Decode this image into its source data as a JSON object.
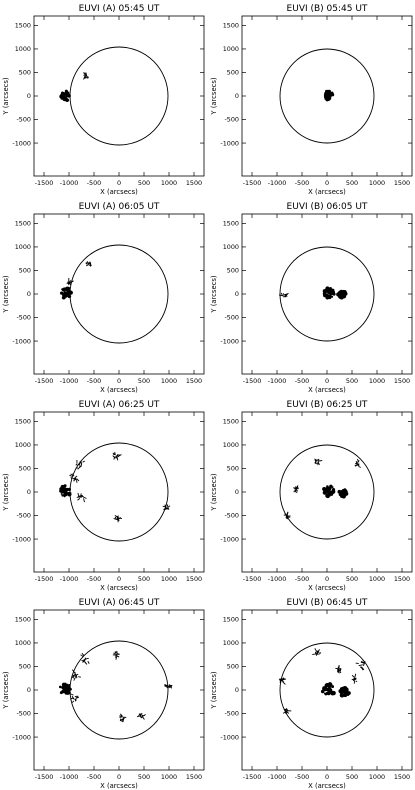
{
  "figure": {
    "chart_data": [
      {
        "type": "scatter",
        "title": "EUVI (A) 05:45 UT",
        "xlabel": "X (arcsecs)",
        "ylabel": "Y (arcsecs)",
        "xlim": [
          -1700,
          1700
        ],
        "ylim": [
          -1700,
          1700
        ],
        "disk_radius": 980,
        "xticks": [
          "-1500",
          "-1000",
          "-500",
          "0",
          "500",
          "1000",
          "1500"
        ],
        "yticks": [
          "-1000",
          "-500",
          "0",
          "500",
          "1000",
          "1500"
        ],
        "regions": [
          {
            "x": -1080,
            "y": 0,
            "r": 100,
            "dense": true
          },
          {
            "x": -660,
            "y": 430,
            "r": 25,
            "dense": false
          }
        ]
      },
      {
        "type": "scatter",
        "title": "EUVI (B) 05:45 UT",
        "xlabel": "X (arcsecs)",
        "ylabel": "Y (arcsecs)",
        "xlim": [
          -1700,
          1700
        ],
        "ylim": [
          -1700,
          1700
        ],
        "disk_radius": 940,
        "xticks": [
          "-1500",
          "-1000",
          "-500",
          "0",
          "500",
          "1000",
          "1500"
        ],
        "yticks": [
          "-1000",
          "-500",
          "0",
          "500",
          "1000",
          "1500"
        ],
        "regions": [
          {
            "x": 30,
            "y": 20,
            "r": 95,
            "dense": true
          }
        ]
      },
      {
        "type": "scatter",
        "title": "EUVI (A) 06:05 UT",
        "xlabel": "X (arcsecs)",
        "ylabel": "Y (arcsecs)",
        "xlim": [
          -1700,
          1700
        ],
        "ylim": [
          -1700,
          1700
        ],
        "disk_radius": 980,
        "xticks": [
          "-1500",
          "-1000",
          "-500",
          "0",
          "500",
          "1000",
          "1500"
        ],
        "yticks": [
          "-1000",
          "-500",
          "0",
          "500",
          "1000",
          "1500"
        ],
        "regions": [
          {
            "x": -1060,
            "y": 20,
            "r": 110,
            "dense": true
          },
          {
            "x": -600,
            "y": 650,
            "r": 45,
            "dense": false
          },
          {
            "x": -980,
            "y": 250,
            "r": 30,
            "dense": false
          }
        ]
      },
      {
        "type": "scatter",
        "title": "EUVI (B) 06:05 UT",
        "xlabel": "X (arcsecs)",
        "ylabel": "Y (arcsecs)",
        "xlim": [
          -1700,
          1700
        ],
        "ylim": [
          -1700,
          1700
        ],
        "disk_radius": 940,
        "xticks": [
          "-1500",
          "-1000",
          "-500",
          "0",
          "500",
          "1000",
          "1500"
        ],
        "yticks": [
          "-1000",
          "-500",
          "0",
          "500",
          "1000",
          "1500"
        ],
        "regions": [
          {
            "x": 40,
            "y": 20,
            "r": 105,
            "dense": true
          },
          {
            "x": 300,
            "y": 0,
            "r": 75,
            "dense": true
          },
          {
            "x": -850,
            "y": -50,
            "r": 40,
            "dense": false
          }
        ]
      },
      {
        "type": "scatter",
        "title": "EUVI (A) 06:25 UT",
        "xlabel": "X (arcsecs)",
        "ylabel": "Y (arcsecs)",
        "xlim": [
          -1700,
          1700
        ],
        "ylim": [
          -1700,
          1700
        ],
        "disk_radius": 980,
        "xticks": [
          "-1500",
          "-1000",
          "-500",
          "0",
          "500",
          "1000",
          "1500"
        ],
        "yticks": [
          "-1000",
          "-500",
          "0",
          "500",
          "1000",
          "1500"
        ],
        "regions": [
          {
            "x": -1070,
            "y": 20,
            "r": 115,
            "dense": true
          },
          {
            "x": -800,
            "y": 600,
            "r": 90,
            "dense": false
          },
          {
            "x": -900,
            "y": 300,
            "r": 60,
            "dense": false
          },
          {
            "x": -760,
            "y": -120,
            "r": 60,
            "dense": false
          },
          {
            "x": -50,
            "y": 760,
            "r": 50,
            "dense": false
          },
          {
            "x": -30,
            "y": -560,
            "r": 35,
            "dense": false
          },
          {
            "x": 950,
            "y": -330,
            "r": 30,
            "dense": false
          }
        ]
      },
      {
        "type": "scatter",
        "title": "EUVI (B) 06:25 UT",
        "xlabel": "X (arcsecs)",
        "ylabel": "Y (arcsecs)",
        "xlim": [
          -1700,
          1700
        ],
        "ylim": [
          -1700,
          1700
        ],
        "disk_radius": 940,
        "xticks": [
          "-1500",
          "-1000",
          "-500",
          "0",
          "500",
          "1000",
          "1500"
        ],
        "yticks": [
          "-1000",
          "-500",
          "0",
          "500",
          "1000",
          "1500"
        ],
        "regions": [
          {
            "x": 40,
            "y": 20,
            "r": 110,
            "dense": true
          },
          {
            "x": 320,
            "y": -20,
            "r": 80,
            "dense": true
          },
          {
            "x": -200,
            "y": 650,
            "r": 45,
            "dense": false
          },
          {
            "x": 600,
            "y": 580,
            "r": 60,
            "dense": false
          },
          {
            "x": -800,
            "y": -520,
            "r": 35,
            "dense": false
          },
          {
            "x": -600,
            "y": 60,
            "r": 30,
            "dense": false
          }
        ]
      },
      {
        "type": "scatter",
        "title": "EUVI (A) 06:45 UT",
        "xlabel": "X (arcsecs)",
        "ylabel": "Y (arcsecs)",
        "xlim": [
          -1700,
          1700
        ],
        "ylim": [
          -1700,
          1700
        ],
        "disk_radius": 980,
        "xticks": [
          "-1500",
          "-1000",
          "-500",
          "0",
          "500",
          "1000",
          "1500"
        ],
        "yticks": [
          "-1000",
          "-500",
          "0",
          "500",
          "1000",
          "1500"
        ],
        "regions": [
          {
            "x": -1070,
            "y": 20,
            "r": 115,
            "dense": true
          },
          {
            "x": -700,
            "y": 650,
            "r": 100,
            "dense": false
          },
          {
            "x": -880,
            "y": 300,
            "r": 70,
            "dense": false
          },
          {
            "x": -900,
            "y": -180,
            "r": 70,
            "dense": false
          },
          {
            "x": -50,
            "y": 760,
            "r": 55,
            "dense": false
          },
          {
            "x": 1000,
            "y": 80,
            "r": 40,
            "dense": false
          },
          {
            "x": 50,
            "y": -600,
            "r": 50,
            "dense": false
          },
          {
            "x": 450,
            "y": -550,
            "r": 40,
            "dense": false
          }
        ]
      },
      {
        "type": "scatter",
        "title": "EUVI (B) 06:45 UT",
        "xlabel": "X (arcsecs)",
        "ylabel": "Y (arcsecs)",
        "xlim": [
          -1700,
          1700
        ],
        "ylim": [
          -1700,
          1700
        ],
        "disk_radius": 940,
        "xticks": [
          "-1500",
          "-1000",
          "-500",
          "0",
          "500",
          "1000",
          "1500"
        ],
        "yticks": [
          "-1000",
          "-500",
          "0",
          "500",
          "1000",
          "1500"
        ],
        "regions": [
          {
            "x": 30,
            "y": 0,
            "r": 130,
            "dense": true
          },
          {
            "x": 350,
            "y": -50,
            "r": 90,
            "dense": true
          },
          {
            "x": -200,
            "y": 780,
            "r": 50,
            "dense": false
          },
          {
            "x": 680,
            "y": 550,
            "r": 70,
            "dense": false
          },
          {
            "x": 550,
            "y": 230,
            "r": 50,
            "dense": false
          },
          {
            "x": -900,
            "y": 200,
            "r": 40,
            "dense": false
          },
          {
            "x": -820,
            "y": -450,
            "r": 40,
            "dense": false
          },
          {
            "x": 250,
            "y": 450,
            "r": 35,
            "dense": false
          }
        ]
      }
    ]
  }
}
